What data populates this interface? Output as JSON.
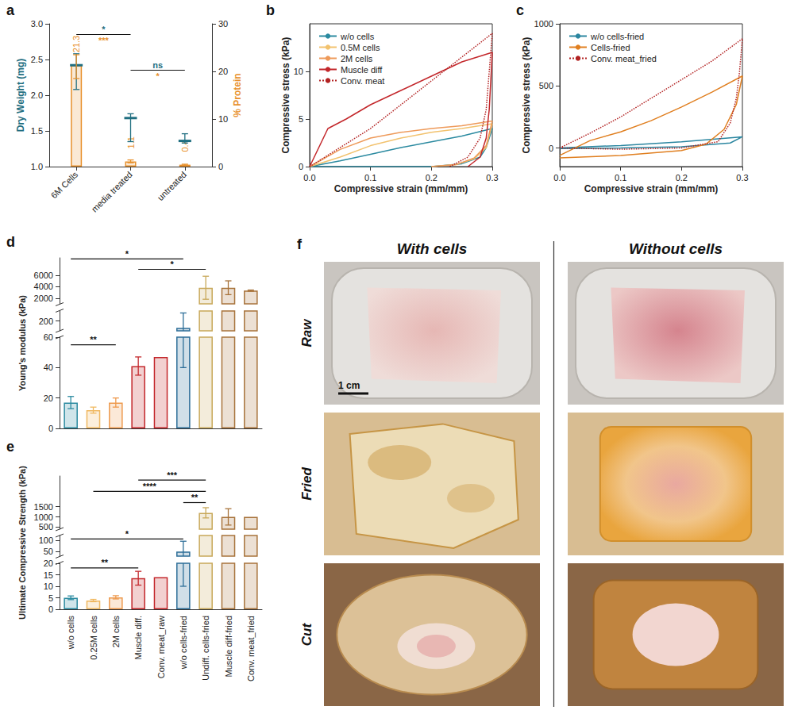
{
  "chart_data": [
    {
      "panel": "a",
      "type": "bar",
      "categories": [
        "6M Cells",
        "media treated",
        "untreated"
      ],
      "ylabel": "Dry Weight (mg)",
      "y2label": "% Protein",
      "ylim": [
        1.0,
        3.0
      ],
      "yticks": [
        {
          "value": 1,
          "label": "1.0"
        },
        {
          "value": 1.5,
          "label": "1.5"
        },
        {
          "value": 2,
          "label": "2.0"
        },
        {
          "value": 2.5,
          "label": "2.5"
        },
        {
          "value": 3,
          "label": "3.0"
        }
      ],
      "y2lim": [
        0,
        30
      ],
      "y2ticks": [
        0,
        10,
        20,
        30
      ],
      "data_labels": true,
      "series": [
        {
          "type": "scatter",
          "marker": "dash",
          "color": "#1f6e80",
          "values": [
            2.42,
            1.68,
            1.36
          ],
          "error_low": [
            2.08,
            1.35,
            1.33
          ],
          "error_high": [
            2.58,
            1.74,
            1.46
          ]
        },
        {
          "type": "bar",
          "axis": "y2",
          "color": "#e8912d",
          "values": [
            21.3,
            1.1,
            0.4
          ],
          "error_low": [
            18.5,
            0.8,
            0.3
          ],
          "error_high": [
            23.5,
            1.4,
            0.5
          ]
        }
      ],
      "annotations": [
        {
          "from": "6M Cells",
          "to": "media treated",
          "y": 2.85,
          "labels": [
            {
              "text": "*",
              "color": "#1f6e80"
            },
            {
              "text": "***",
              "color": "#e8912d"
            }
          ]
        },
        {
          "from": "media treated",
          "to": "untreated",
          "y": 2.35,
          "labels": [
            {
              "text": "ns",
              "color": "#1f6e80"
            },
            {
              "text": "*",
              "color": "#e8912d"
            }
          ]
        }
      ]
    },
    {
      "panel": "b",
      "type": "line",
      "xlabel": "Compressive strain (mm/mm)",
      "ylabel": "Compressive stress (kPa)",
      "xlim": [
        0,
        0.3
      ],
      "xticks": [
        {
          "value": 0,
          "label": "0.0"
        },
        0.1,
        0.2,
        0.3
      ],
      "ylim": [
        0,
        15
      ],
      "yticks": [
        0,
        5,
        10
      ],
      "legend": "top-left",
      "series": [
        {
          "name": "w/o cells",
          "color": "#2b8aa0",
          "line_style": "solid",
          "x": [
            0,
            0.05,
            0.1,
            0.15,
            0.2,
            0.25,
            0.3,
            0.29,
            0.28,
            0.25,
            0.2,
            0.1,
            0
          ],
          "values": [
            0,
            0.6,
            1.3,
            2.0,
            2.6,
            3.2,
            4.0,
            2.0,
            1.0,
            0.3,
            0,
            0,
            0
          ]
        },
        {
          "name": "0.5M cells",
          "color": "#f2c26e",
          "line_style": "solid",
          "x": [
            0,
            0.05,
            0.1,
            0.15,
            0.2,
            0.25,
            0.3,
            0.29,
            0.27,
            0.24,
            0.2
          ],
          "values": [
            0,
            1.0,
            2.2,
            3.0,
            3.6,
            4.0,
            4.5,
            2.0,
            0.8,
            0.2,
            0
          ]
        },
        {
          "name": "2M cells",
          "color": "#ee9a5a",
          "line_style": "solid",
          "x": [
            0,
            0.05,
            0.1,
            0.15,
            0.2,
            0.25,
            0.3,
            0.29,
            0.27,
            0.24,
            0.2
          ],
          "values": [
            0,
            1.8,
            3.0,
            3.6,
            4.0,
            4.3,
            4.8,
            2.2,
            0.9,
            0.2,
            0
          ]
        },
        {
          "name": "Muscle diff",
          "color": "#c3272b",
          "line_style": "solid",
          "x": [
            0,
            0.03,
            0.06,
            0.1,
            0.15,
            0.2,
            0.25,
            0.3,
            0.295,
            0.29,
            0.28,
            0.26
          ],
          "values": [
            0,
            4.0,
            5.0,
            6.5,
            8.0,
            9.5,
            11.0,
            12.0,
            6.0,
            3.0,
            1.0,
            0
          ]
        },
        {
          "name": "Conv. meat",
          "color": "#b22222",
          "line_style": "dotted",
          "x": [
            0,
            0.05,
            0.1,
            0.15,
            0.2,
            0.25,
            0.3,
            0.295,
            0.29,
            0.28,
            0.26,
            0.23
          ],
          "values": [
            0,
            2.0,
            4.0,
            6.5,
            9.0,
            11.5,
            14.0,
            10.0,
            6.0,
            3.0,
            1.0,
            0
          ]
        }
      ]
    },
    {
      "panel": "c",
      "type": "line",
      "xlabel": "Compressive strain (mm/mm)",
      "ylabel": "Compressive stress (kPa)",
      "xlim": [
        0,
        0.3
      ],
      "xticks": [
        {
          "value": 0,
          "label": "0.0"
        },
        0.1,
        0.2,
        0.3
      ],
      "ylim": [
        -150,
        1000
      ],
      "yticks": [
        0,
        500,
        1000
      ],
      "legend": "top-left",
      "series": [
        {
          "name": "w/o cells-fried",
          "color": "#2b86a0",
          "line_style": "solid",
          "x": [
            0,
            0.1,
            0.2,
            0.3,
            0.28,
            0.2,
            0.1,
            0
          ],
          "values": [
            0,
            20,
            50,
            90,
            40,
            10,
            0,
            -5
          ]
        },
        {
          "name": "Cells-fried",
          "color": "#e07f20",
          "line_style": "solid",
          "x": [
            0,
            0.05,
            0.1,
            0.15,
            0.2,
            0.25,
            0.3,
            0.29,
            0.27,
            0.24,
            0.2,
            0.1,
            0
          ],
          "values": [
            -60,
            60,
            130,
            220,
            330,
            450,
            580,
            350,
            150,
            30,
            -20,
            -60,
            -80
          ]
        },
        {
          "name": "Conv. meat_fried",
          "color": "#b22222",
          "line_style": "dotted",
          "x": [
            0,
            0.05,
            0.1,
            0.15,
            0.2,
            0.25,
            0.3,
            0.295,
            0.29,
            0.28,
            0.26,
            0.2,
            0.1,
            0
          ],
          "values": [
            0,
            120,
            250,
            400,
            550,
            700,
            880,
            600,
            400,
            200,
            50,
            0,
            -10,
            0
          ]
        }
      ]
    },
    {
      "panel": "d",
      "type": "bar",
      "ylabel": "Young's modulus (kPa)",
      "tick_labels": "y",
      "categories": [
        "w/o cells",
        "0.25M cells",
        "2M cells",
        "Muscle diff.",
        "Conv. meat_raw",
        "w/o cells-fried",
        "Undiff. cells-fried",
        "Muscle diff-fried",
        "Conv. meat_fried"
      ],
      "y_segments": [
        {
          "ylim": [
            0,
            60
          ],
          "yticks": [
            0,
            20,
            40,
            60
          ]
        },
        {
          "ylim": [
            100,
            300
          ],
          "yticks": [
            200
          ]
        },
        {
          "ylim": [
            1000,
            9000
          ],
          "yticks": [
            2000,
            4000,
            6000
          ]
        }
      ],
      "colors": [
        "#2a8aa0",
        "#f0b860",
        "#ee9a4e",
        "#c3272b",
        "#c3272b",
        "#2d6e98",
        "#c8a85a",
        "#a8733b",
        "#a8733b"
      ],
      "values": [
        17,
        12,
        17,
        41,
        47,
        130,
        3800,
        3800,
        3300
      ],
      "error_low": [
        13,
        10,
        14,
        35,
        null,
        40,
        1800,
        2600,
        3200
      ],
      "error_high": [
        21,
        14,
        20,
        47,
        null,
        280,
        5800,
        5000,
        3400
      ],
      "annotations": [
        {
          "from": "w/o cells",
          "to": "w/o cells-fried",
          "y": 8800,
          "label": "*"
        },
        {
          "from": "Muscle diff.",
          "to": "Undiff. cells-fried",
          "y": 7000,
          "label": "*"
        },
        {
          "from": "w/o cells",
          "to": "2M cells",
          "y": 55,
          "label": "**"
        }
      ]
    },
    {
      "panel": "e",
      "type": "bar",
      "ylabel": "Ultimate Compressive Strength (kPa)",
      "categories": [
        "w/o cells",
        "0.25M cells",
        "2M cells",
        "Muscle diff.",
        "Conv. meat_raw",
        "w/o cells-fried",
        "Undiff. cells-fried",
        "Muscle diff-fried",
        "Conv. meat_fried"
      ],
      "y_segments": [
        {
          "ylim": [
            0,
            20
          ],
          "yticks": [
            0,
            5,
            10,
            15,
            20
          ]
        },
        {
          "ylim": [
            30,
            120
          ],
          "yticks": [
            50,
            100
          ]
        },
        {
          "ylim": [
            400,
            3000
          ],
          "yticks": [
            500,
            1000,
            1500
          ]
        }
      ],
      "colors": [
        "#2a8aa0",
        "#f0b860",
        "#ee9a4e",
        "#c3272b",
        "#c3272b",
        "#2d6e98",
        "#c8a85a",
        "#a8733b",
        "#a8733b"
      ],
      "values": [
        5,
        3.8,
        5.2,
        13.5,
        14,
        50,
        1200,
        1000,
        1000
      ],
      "error_low": [
        4.2,
        3.3,
        4.5,
        10.5,
        null,
        10,
        950,
        600,
        null
      ],
      "error_high": [
        5.8,
        4.3,
        5.9,
        16.5,
        null,
        95,
        1450,
        1400,
        null
      ],
      "annotations": [
        {
          "from": "Muscle diff.",
          "to": "Undiff. cells-fried",
          "y": 2800,
          "label": "***"
        },
        {
          "from": "0.25M cells",
          "to": "Undiff. cells-fried",
          "y": 2250,
          "label": "****"
        },
        {
          "from": "w/o cells-fried",
          "to": "Undiff. cells-fried",
          "y": 1700,
          "label": "**"
        },
        {
          "from": "w/o cells",
          "to": "w/o cells-fried",
          "y": 105,
          "label": "*"
        },
        {
          "from": "w/o cells",
          "to": "Muscle diff.",
          "y": 18,
          "label": "**"
        }
      ]
    }
  ],
  "figure_f": {
    "letter": "f",
    "columns": [
      "With cells",
      "Without cells"
    ],
    "rows": [
      "Raw",
      "Fried",
      "Cut"
    ],
    "scale_bar": "1 cm"
  }
}
